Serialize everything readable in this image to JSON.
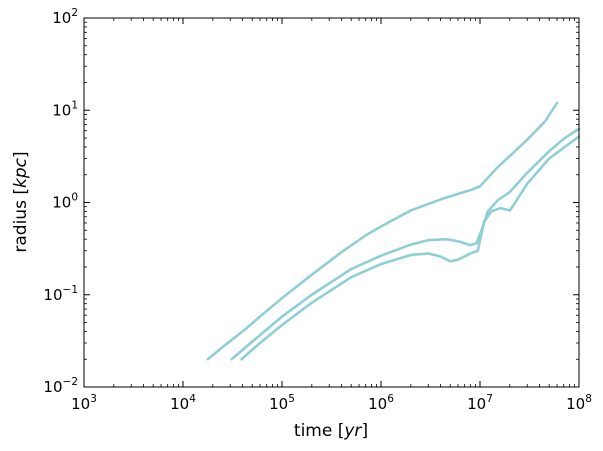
{
  "chart_data": {
    "type": "line",
    "title": "",
    "xlabel": {
      "prefix": "time [",
      "var": "yr",
      "suffix": "]"
    },
    "ylabel": {
      "prefix": "radius [",
      "var": "kpc",
      "suffix": "]"
    },
    "xscale": "log",
    "yscale": "log",
    "xlim": [
      1000,
      100000000
    ],
    "ylim": [
      0.01,
      100
    ],
    "x_ticks": [
      {
        "value": 1000,
        "base": "10",
        "exp": "3"
      },
      {
        "value": 10000,
        "base": "10",
        "exp": "4"
      },
      {
        "value": 100000,
        "base": "10",
        "exp": "5"
      },
      {
        "value": 1000000,
        "base": "10",
        "exp": "6"
      },
      {
        "value": 10000000,
        "base": "10",
        "exp": "7"
      },
      {
        "value": 100000000,
        "base": "10",
        "exp": "8"
      }
    ],
    "y_ticks": [
      {
        "value": 0.01,
        "base": "10",
        "exp": "−2"
      },
      {
        "value": 0.1,
        "base": "10",
        "exp": "−1"
      },
      {
        "value": 1,
        "base": "10",
        "exp": "0"
      },
      {
        "value": 10,
        "base": "10",
        "exp": "1"
      },
      {
        "value": 100,
        "base": "10",
        "exp": "2"
      }
    ],
    "grid": false,
    "legend": "none",
    "line_color": "#8fcfd3",
    "series": [
      {
        "points": [
          [
            17800,
            0.02
          ],
          [
            25000,
            0.027
          ],
          [
            40000,
            0.04
          ],
          [
            60000,
            0.058
          ],
          [
            100000,
            0.092
          ],
          [
            200000,
            0.165
          ],
          [
            400000,
            0.29
          ],
          [
            700000,
            0.44
          ],
          [
            1000000,
            0.55
          ],
          [
            2000000,
            0.82
          ],
          [
            4000000,
            1.08
          ],
          [
            6000000,
            1.24
          ],
          [
            8000000,
            1.36
          ],
          [
            10000000,
            1.5
          ],
          [
            12000000,
            1.85
          ],
          [
            15000000,
            2.4
          ],
          [
            20000000,
            3.2
          ],
          [
            30000000,
            4.8
          ],
          [
            45000000,
            7.5
          ],
          [
            60000000,
            12
          ]
        ]
      },
      {
        "points": [
          [
            31000,
            0.02
          ],
          [
            50000,
            0.031
          ],
          [
            100000,
            0.058
          ],
          [
            200000,
            0.1
          ],
          [
            500000,
            0.19
          ],
          [
            1000000,
            0.265
          ],
          [
            2000000,
            0.35
          ],
          [
            3000000,
            0.39
          ],
          [
            4500000,
            0.4
          ],
          [
            6000000,
            0.38
          ],
          [
            8000000,
            0.345
          ],
          [
            9200000,
            0.36
          ],
          [
            10500000,
            0.52
          ],
          [
            12000000,
            0.8
          ],
          [
            15000000,
            1.05
          ],
          [
            20000000,
            1.3
          ],
          [
            30000000,
            2.1
          ],
          [
            50000000,
            3.6
          ],
          [
            70000000,
            4.9
          ],
          [
            100000000,
            6.3
          ]
        ]
      },
      {
        "points": [
          [
            39000,
            0.02
          ],
          [
            60000,
            0.03
          ],
          [
            100000,
            0.047
          ],
          [
            200000,
            0.082
          ],
          [
            500000,
            0.155
          ],
          [
            1000000,
            0.215
          ],
          [
            2000000,
            0.27
          ],
          [
            3000000,
            0.28
          ],
          [
            4000000,
            0.26
          ],
          [
            5000000,
            0.23
          ],
          [
            6000000,
            0.24
          ],
          [
            8000000,
            0.28
          ],
          [
            9500000,
            0.3
          ],
          [
            11000000,
            0.62
          ],
          [
            13000000,
            0.8
          ],
          [
            16000000,
            0.87
          ],
          [
            20000000,
            0.82
          ],
          [
            22000000,
            0.95
          ],
          [
            30000000,
            1.6
          ],
          [
            50000000,
            3.0
          ],
          [
            100000000,
            5.2
          ]
        ]
      }
    ]
  }
}
